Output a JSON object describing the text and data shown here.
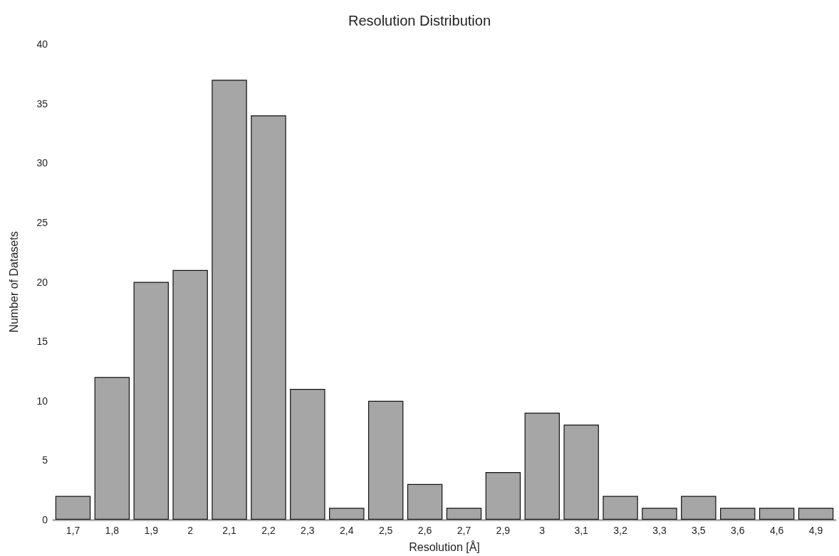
{
  "chart_data": {
    "type": "bar",
    "title": "Resolution Distribution",
    "xlabel": "Resolution [Å]",
    "ylabel": "Number of Datasets",
    "categories": [
      "1,7",
      "1,8",
      "1,9",
      "2",
      "2,1",
      "2,2",
      "2,3",
      "2,4",
      "2,5",
      "2,6",
      "2,7",
      "2,9",
      "3",
      "3,1",
      "3,2",
      "3,3",
      "3,5",
      "3,6",
      "4,6",
      "4,9"
    ],
    "values": [
      2,
      12,
      20,
      21,
      37,
      34,
      11,
      1,
      10,
      3,
      1,
      4,
      9,
      8,
      2,
      1,
      2,
      1,
      1,
      1
    ],
    "color": "#a6a6a6",
    "ylim": [
      0,
      40
    ],
    "yticks": [
      0,
      5,
      10,
      15,
      20,
      25,
      30,
      35,
      40
    ],
    "grid": false
  }
}
